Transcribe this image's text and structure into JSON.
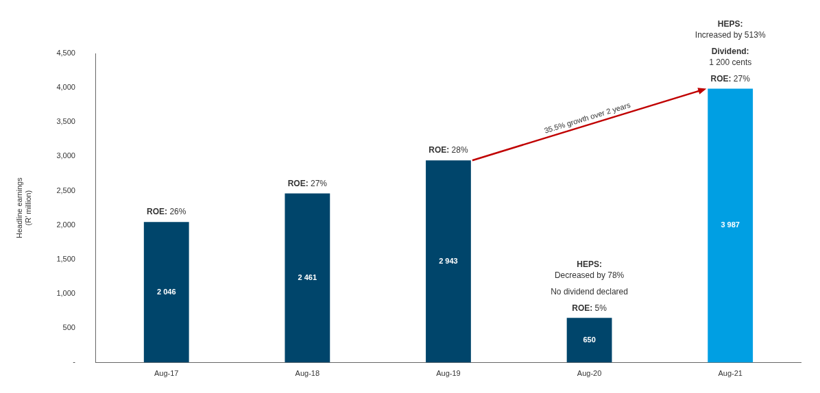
{
  "chart_data": {
    "type": "bar",
    "ylabel": "Headline earnings\n(R’ million)",
    "categories": [
      "Aug-17",
      "Aug-18",
      "Aug-19",
      "Aug-20",
      "Aug-21"
    ],
    "values": [
      2046,
      2461,
      2943,
      650,
      3987
    ],
    "colors": [
      "#00456b",
      "#00456b",
      "#00456b",
      "#00456b",
      "#009fe3"
    ],
    "value_labels": [
      "2 046",
      "2 461",
      "2 943",
      "650",
      "3 987"
    ],
    "ylim": [
      0,
      4500
    ],
    "yticks": [
      {
        "value": 0,
        "label": "-"
      },
      500,
      {
        "value": 1000,
        "label": "1,000"
      },
      {
        "value": 1500,
        "label": "1,500"
      },
      {
        "value": 2000,
        "label": "2,000"
      },
      {
        "value": 2500,
        "label": "2,500"
      },
      {
        "value": 3000,
        "label": "3,000"
      },
      {
        "value": 3500,
        "label": "3,500"
      },
      {
        "value": 4000,
        "label": "4,000"
      },
      {
        "value": 4500,
        "label": "4,500"
      }
    ],
    "grid": false,
    "legend": false,
    "annotations": [
      "35.5% growth over 2 years",
      {
        "text": "ROE: 26%",
        "x": "Aug-17",
        "y": 2046
      },
      {
        "text": "ROE: 27%",
        "x": "Aug-18",
        "y": 2461
      },
      {
        "text": "ROE: 28%",
        "x": "Aug-19",
        "y": 2943
      },
      {
        "text": "ROE: 5%",
        "x": "Aug-20",
        "y": 650
      },
      "No dividend declared",
      "Decreased by 78%",
      "HEPS:",
      {
        "text": "ROE: 27%",
        "x": "Aug-21",
        "y": 3987
      },
      "1 200 cents",
      "Dividend:",
      "Increased by 513%",
      "HEPS:"
    ]
  }
}
